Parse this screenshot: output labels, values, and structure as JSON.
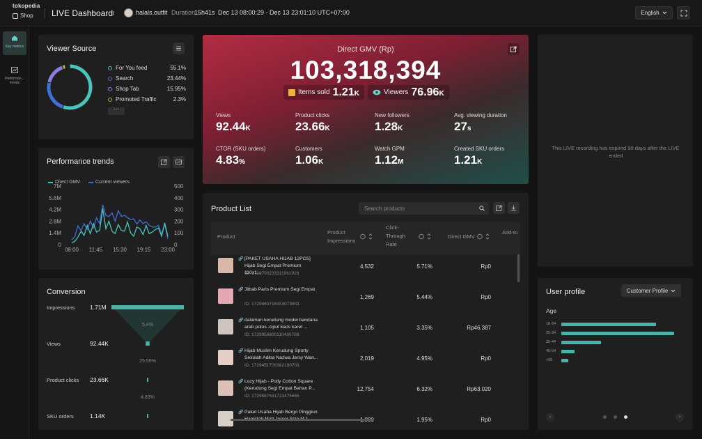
{
  "header": {
    "brand": "tokopedia",
    "shop": "Shop",
    "title": "LIVE Dashboard",
    "username": "halals.outfit",
    "duration_label": "Duration",
    "duration_value": "15h41s",
    "date_range": "Dec 13 08:00:29 - Dec 13 23:01:10 UTC+07:00",
    "language": "English"
  },
  "sidebar": {
    "items": [
      {
        "label": "Key metrics",
        "active": true
      },
      {
        "label": "Performan... trends",
        "active": false
      }
    ]
  },
  "viewer_source": {
    "title": "Viewer Source",
    "items": [
      {
        "label": "For You feed",
        "value": "55.1%",
        "color": "#4cc3bb"
      },
      {
        "label": "Search",
        "value": "23.44%",
        "color": "#3f6fd6"
      },
      {
        "label": "Shop Tab",
        "value": "15.95%",
        "color": "#8a7fe0"
      },
      {
        "label": "Promoted Traffic",
        "value": "2.3%",
        "color": "#b5a43a"
      }
    ],
    "more": "···"
  },
  "performance": {
    "title": "Performance trends",
    "legend": [
      "Direct GMV",
      "Current viewers"
    ],
    "colors": {
      "gmv": "#4cc3bb",
      "viewers": "#3f6fd6"
    }
  },
  "chart_data": {
    "type": "line",
    "title": "Performance trends",
    "x_ticks": [
      "08:00",
      "11:45",
      "15:30",
      "19:15",
      "23:00"
    ],
    "y_left_ticks": [
      "7M",
      "5.6M",
      "4.2M",
      "2.8M",
      "1.4M",
      "0"
    ],
    "y_right_ticks": [
      "500",
      "400",
      "300",
      "200",
      "100",
      "0"
    ],
    "ylim_left": [
      0,
      7000000
    ],
    "ylim_right": [
      0,
      500
    ],
    "series": [
      {
        "name": "Direct GMV",
        "axis": "left",
        "values": [
          0.2,
          0.4,
          0.9,
          1.6,
          1.1,
          2.3,
          1.3,
          2.5,
          1.5,
          1.7,
          4.3,
          1.9,
          2.8,
          1.6,
          1.3,
          2.4,
          1.7,
          1.6,
          2.7,
          1.4,
          1.0,
          2.1,
          1.9,
          1.2,
          2.3,
          1.3,
          1.5,
          1.8,
          2.0,
          1.0,
          2.6,
          1.0
        ]
      },
      {
        "name": "Current viewers",
        "axis": "right",
        "values": [
          40,
          70,
          160,
          120,
          180,
          130,
          200,
          140,
          230,
          180,
          340,
          250,
          240,
          270,
          200,
          290,
          240,
          250,
          230,
          215,
          220,
          175,
          210,
          180,
          195,
          165,
          150,
          150,
          165,
          85,
          175,
          50
        ]
      }
    ]
  },
  "gmv": {
    "label": "Direct GMV (Rp)",
    "value": "103,318,394",
    "items_sold_label": "Items sold",
    "items_sold_value": "1.21",
    "items_sold_unit": "K",
    "viewers_label": "Viewers",
    "viewers_value": "76.96",
    "viewers_unit": "K",
    "metrics": [
      {
        "label": "Views",
        "value": "92.44",
        "unit": "K"
      },
      {
        "label": "Product clicks",
        "value": "23.66",
        "unit": "K"
      },
      {
        "label": "New followers",
        "value": "1.28",
        "unit": "K"
      },
      {
        "label": "Avg. viewing duration",
        "value": "27",
        "unit": "s"
      },
      {
        "label": "CTOR (SKU orders)",
        "value": "4.83",
        "unit": "%"
      },
      {
        "label": "Customers",
        "value": "1.06",
        "unit": "K"
      },
      {
        "label": "Watch GPM",
        "value": "1.12",
        "unit": "M"
      },
      {
        "label": "Created SKU orders",
        "value": "1.21",
        "unit": "K"
      }
    ]
  },
  "product_list": {
    "title": "Product List",
    "search_placeholder": "Search products",
    "columns": {
      "product": "Product",
      "impressions": "Product Impressions",
      "ctr": "Click-Through Rate",
      "gmv": "Direct GMV",
      "atc": "Add-to-cart count"
    },
    "rows": [
      {
        "name": "[PAKET USAHA HIJAB 12PCS] Hijab Segi Empat Premium 110x1...",
        "id": "ID: 1729700233311061916",
        "impressions": "4,532",
        "ctr": "5.71%",
        "gmv": "Rp0"
      },
      {
        "name": "Jilbab Paris Premium Segi Empat",
        "id": "ID: 1729460718153073903",
        "impressions": "1,269",
        "ctr": "5.44%",
        "gmv": "Rp0"
      },
      {
        "name": "dalaman kerudung model bandana arab polos..ciput kaos karet ...",
        "id": "ID: 1729956800110430708",
        "impressions": "1,105",
        "ctr": "3.35%",
        "gmv": "Rp46.387"
      },
      {
        "name": "Hijab Muslim Kerudung Sporty Sekolah Adiba Nazwa Jersy Wan...",
        "id": "ID: 1729451706382190703",
        "impressions": "2,019",
        "ctr": "4.95%",
        "gmv": "Rp0"
      },
      {
        "name": "Lozy Hijab - Polly Cotton Square (Kerudung Segi Empat Bahan P...",
        "id": "ID: 1729587531723475655",
        "impressions": "12,754",
        "ctr": "6.32%",
        "gmv": "Rp63.020"
      },
      {
        "name": "Paket Usaha Hijab Bergo Pinggiun Hamidah Matt Jerser Size M 1...",
        "id": "",
        "impressions": "1,900",
        "ctr": "1.95%",
        "gmv": "Rp0"
      }
    ]
  },
  "conversion": {
    "title": "Conversion",
    "stages": [
      {
        "label": "Impressions",
        "value": "1.71M"
      },
      {
        "label": "Views",
        "value": "92.44K"
      },
      {
        "label": "Product clicks",
        "value": "23.66K"
      },
      {
        "label": "SKU orders",
        "value": "1.14K"
      }
    ],
    "rates": [
      "5.4%",
      "25.59%",
      "4.83%"
    ],
    "bar_fractions": [
      1.0,
      0.054,
      0.0138,
      0.00067
    ]
  },
  "expired": {
    "message": "This LIVE recording has expired 90 days after the LIVE ended"
  },
  "user_profile": {
    "title": "User profile",
    "dropdown": "Customer Profile",
    "age_label": "Age",
    "age_categories": [
      "18-24",
      "25-34",
      "35-44",
      "45-54",
      ">55"
    ],
    "age_values": [
      0.84,
      1.0,
      0.35,
      0.12,
      0.06
    ],
    "pager_prev": "‹",
    "pager_next": "›"
  }
}
